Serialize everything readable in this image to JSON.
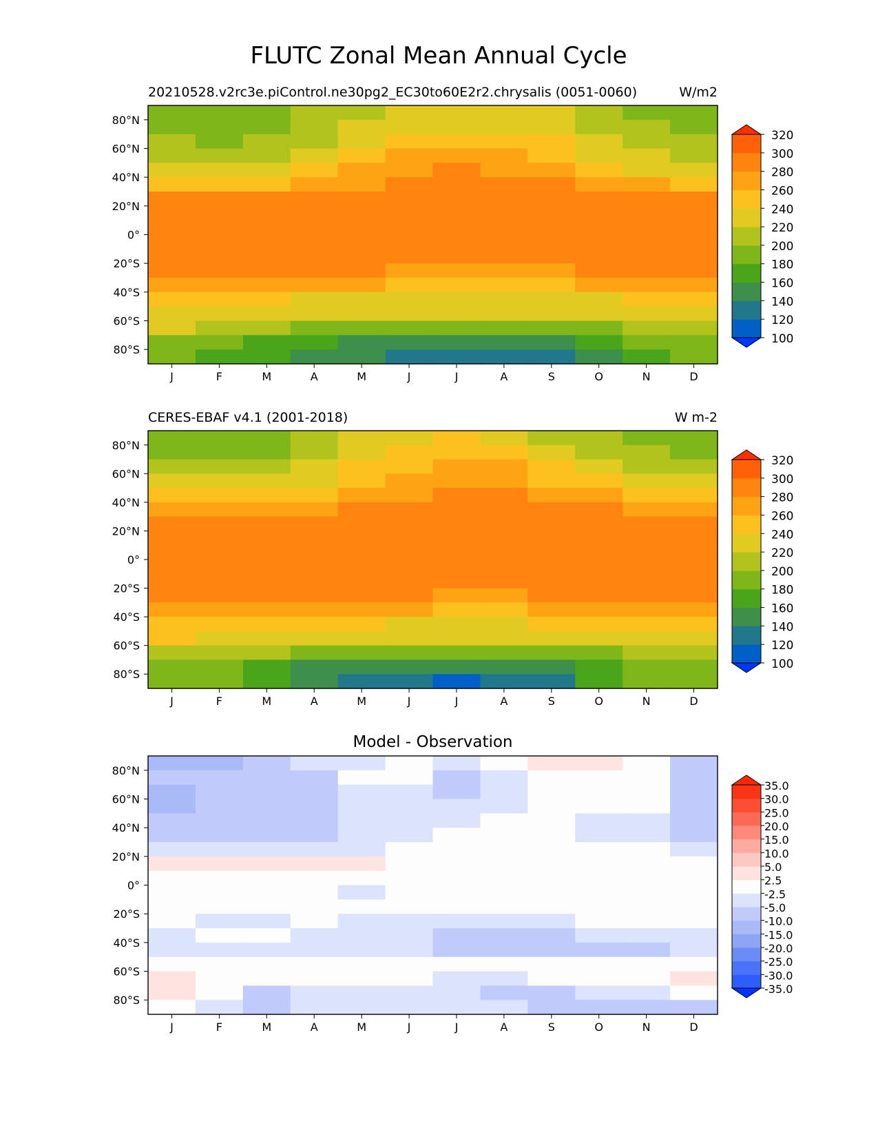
{
  "figure": {
    "title": "FLUTC Zonal Mean Annual Cycle"
  },
  "months": [
    "J",
    "F",
    "M",
    "A",
    "M",
    "J",
    "J",
    "A",
    "S",
    "O",
    "N",
    "D"
  ],
  "lat_ticks": [
    "80°N",
    "60°N",
    "40°N",
    "20°N",
    "0°",
    "20°S",
    "40°S",
    "60°S",
    "80°S"
  ],
  "colors": {
    "abs_levels": [
      100,
      120,
      140,
      160,
      180,
      200,
      220,
      240,
      260,
      280,
      300,
      320
    ],
    "abs_palette": [
      "#0036ff",
      "#0060c8",
      "#20788a",
      "#3f8f4c",
      "#4aa51a",
      "#7fb619",
      "#b2c31e",
      "#e1cb23",
      "#fdc11f",
      "#fea314",
      "#ff8410",
      "#ff6008",
      "#ff3000"
    ],
    "diff_levels": [
      -35,
      -30,
      -25,
      -20,
      -15,
      -10,
      -5,
      -2.5,
      2.5,
      5,
      10,
      15,
      20,
      25,
      30,
      35
    ],
    "diff_palette": [
      "#0033ff",
      "#2d5cff",
      "#4a73fa",
      "#6b8cf7",
      "#8ea4f5",
      "#aab9f7",
      "#c0cbfb",
      "#dce3fc",
      "#fdfdfd",
      "#fde4e1",
      "#fdc8c1",
      "#fdaba0",
      "#fc8a7c",
      "#fb6a57",
      "#fb4e35",
      "#fb3416",
      "#ff2800"
    ],
    "diff_labels": [
      "35.0",
      "30.0",
      "25.0",
      "20.0",
      "15.0",
      "10.0",
      "5.0",
      "2.5",
      "-2.5",
      "-5.0",
      "-10.0",
      "-15.0",
      "-20.0",
      "-25.0",
      "-30.0",
      "-35.0"
    ]
  },
  "chart_data": [
    {
      "type": "heatmap",
      "title": "20210528.v2rc3e.piControl.ne30pg2_EC30to60E2r2.chrysalis (0051-0060)",
      "units": "W/m2",
      "x": [
        "J",
        "F",
        "M",
        "A",
        "M",
        "J",
        "J",
        "A",
        "S",
        "O",
        "N",
        "D"
      ],
      "ylim": [
        -90,
        90
      ],
      "colorbar_ticks": [
        "320",
        "300",
        "280",
        "260",
        "240",
        "220",
        "200",
        "180",
        "160",
        "140",
        "120",
        "100"
      ],
      "lat": [
        85,
        75,
        65,
        55,
        45,
        35,
        25,
        15,
        5,
        -5,
        -15,
        -25,
        -35,
        -45,
        -55,
        -65,
        -75,
        -85
      ],
      "values": [
        [
          182,
          180,
          185,
          200,
          210,
          225,
          227,
          225,
          225,
          205,
          195,
          180
        ],
        [
          193,
          190,
          192,
          205,
          222,
          235,
          238,
          237,
          232,
          215,
          205,
          190
        ],
        [
          200,
          198,
          203,
          215,
          230,
          250,
          255,
          252,
          240,
          225,
          213,
          200
        ],
        [
          213,
          212,
          218,
          228,
          245,
          262,
          266,
          262,
          252,
          236,
          222,
          210
        ],
        [
          230,
          230,
          235,
          245,
          262,
          275,
          280,
          278,
          266,
          250,
          238,
          228
        ],
        [
          255,
          255,
          258,
          265,
          275,
          288,
          292,
          290,
          283,
          270,
          260,
          255
        ],
        [
          283,
          283,
          283,
          284,
          287,
          293,
          296,
          296,
          292,
          288,
          285,
          283
        ],
        [
          290,
          290,
          290,
          289,
          290,
          293,
          295,
          295,
          294,
          292,
          291,
          290
        ],
        [
          292,
          292,
          292,
          292,
          292,
          294,
          295,
          295,
          294,
          293,
          292,
          292
        ],
        [
          293,
          293,
          292,
          291,
          292,
          292,
          292,
          292,
          292,
          292,
          293,
          293
        ],
        [
          292,
          292,
          291,
          290,
          289,
          288,
          287,
          287,
          288,
          289,
          290,
          292
        ],
        [
          287,
          287,
          286,
          284,
          281,
          278,
          276,
          276,
          278,
          281,
          284,
          287
        ],
        [
          270,
          267,
          267,
          263,
          260,
          257,
          256,
          256,
          258,
          262,
          266,
          270
        ],
        [
          246,
          243,
          243,
          239,
          236,
          234,
          233,
          233,
          236,
          239,
          243,
          246
        ],
        [
          238,
          236,
          233,
          228,
          225,
          222,
          221,
          221,
          223,
          227,
          232,
          236
        ],
        [
          220,
          215,
          207,
          198,
          192,
          188,
          187,
          187,
          192,
          198,
          210,
          218
        ],
        [
          198,
          182,
          170,
          163,
          158,
          153,
          150,
          151,
          155,
          165,
          183,
          195
        ],
        [
          195,
          178,
          160,
          148,
          140,
          132,
          125,
          126,
          135,
          152,
          175,
          190
        ]
      ]
    },
    {
      "type": "heatmap",
      "title": "CERES-EBAF v4.1 (2001-2018)",
      "units": "W m-2",
      "x": [
        "J",
        "F",
        "M",
        "A",
        "M",
        "J",
        "J",
        "A",
        "S",
        "O",
        "N",
        "D"
      ],
      "ylim": [
        -90,
        90
      ],
      "colorbar_ticks": [
        "320",
        "300",
        "280",
        "260",
        "240",
        "220",
        "200",
        "180",
        "160",
        "140",
        "120",
        "100"
      ],
      "lat": [
        85,
        75,
        65,
        55,
        45,
        35,
        25,
        15,
        5,
        -5,
        -15,
        -25,
        -35,
        -45,
        -55,
        -65,
        -75,
        -85
      ],
      "values": [
        [
          195,
          195,
          190,
          205,
          222,
          230,
          240,
          232,
          215,
          205,
          195,
          195
        ],
        [
          198,
          197,
          198,
          210,
          228,
          245,
          252,
          245,
          230,
          210,
          200,
          198
        ],
        [
          208,
          210,
          215,
          225,
          240,
          255,
          265,
          262,
          245,
          228,
          215,
          208
        ],
        [
          225,
          225,
          230,
          238,
          252,
          265,
          272,
          270,
          258,
          245,
          232,
          225
        ],
        [
          248,
          248,
          250,
          255,
          265,
          275,
          282,
          280,
          272,
          262,
          252,
          248
        ],
        [
          270,
          272,
          273,
          275,
          282,
          288,
          292,
          292,
          286,
          280,
          274,
          270
        ],
        [
          288,
          288,
          288,
          288,
          290,
          293,
          295,
          294,
          292,
          290,
          289,
          288
        ],
        [
          290,
          290,
          290,
          290,
          292,
          294,
          296,
          296,
          294,
          292,
          291,
          290
        ],
        [
          292,
          292,
          292,
          292,
          293,
          295,
          296,
          296,
          294,
          293,
          292,
          292
        ],
        [
          292,
          292,
          292,
          292,
          292,
          292,
          292,
          292,
          292,
          292,
          293,
          292
        ],
        [
          293,
          293,
          292,
          291,
          290,
          289,
          288,
          288,
          289,
          290,
          291,
          293
        ],
        [
          289,
          289,
          288,
          286,
          283,
          280,
          278,
          278,
          281,
          284,
          287,
          289
        ],
        [
          272,
          270,
          270,
          266,
          263,
          260,
          258,
          258,
          261,
          265,
          269,
          272
        ],
        [
          249,
          246,
          246,
          243,
          240,
          238,
          237,
          237,
          240,
          243,
          247,
          249
        ],
        [
          240,
          238,
          236,
          231,
          228,
          225,
          224,
          224,
          226,
          230,
          235,
          238
        ],
        [
          218,
          213,
          205,
          194,
          188,
          183,
          182,
          182,
          188,
          196,
          208,
          216
        ],
        [
          197,
          182,
          168,
          158,
          152,
          146,
          144,
          145,
          150,
          160,
          180,
          194
        ],
        [
          190,
          180,
          170,
          148,
          138,
          130,
          118,
          120,
          132,
          172,
          185,
          190
        ]
      ]
    },
    {
      "type": "heatmap",
      "title": "Model - Observation",
      "x": [
        "J",
        "F",
        "M",
        "A",
        "M",
        "J",
        "J",
        "A",
        "S",
        "O",
        "N",
        "D"
      ],
      "ylim": [
        -90,
        90
      ],
      "colorbar_ticks": [
        "35.0",
        "30.0",
        "25.0",
        "20.0",
        "15.0",
        "10.0",
        "5.0",
        "2.5",
        "-2.5",
        "-5.0",
        "-10.0",
        "-15.0",
        "-20.0",
        "-25.0",
        "-30.0",
        "-35.0"
      ],
      "lat": [
        85,
        75,
        65,
        55,
        45,
        35,
        25,
        15,
        5,
        -5,
        -15,
        -25,
        -35,
        -45,
        -55,
        -65,
        -75,
        -85
      ],
      "values": [
        [
          -13,
          -12,
          -7,
          -4,
          -4,
          -1,
          -3,
          1,
          4,
          3,
          -1,
          -7
        ],
        [
          -10,
          -8,
          -7,
          -6,
          1,
          -1,
          -6,
          -3,
          1,
          1,
          1,
          -7
        ],
        [
          -12,
          -7,
          -7,
          -7,
          -4,
          -5,
          -6,
          -3,
          1,
          1,
          1,
          -7
        ],
        [
          -12,
          -7,
          -7,
          -7,
          -4,
          -3,
          -4,
          -3,
          1,
          1,
          1,
          -7
        ],
        [
          -8,
          -7,
          -7,
          -7,
          -4,
          -3,
          -3,
          -2,
          1,
          -3,
          -3,
          -7
        ],
        [
          -7,
          -7,
          -7,
          -7,
          -5,
          -4,
          -1,
          0,
          -1,
          -3,
          -3,
          -7
        ],
        [
          -3,
          -3,
          -3,
          -3,
          -3,
          1,
          1,
          1,
          1,
          1,
          1,
          -3
        ],
        [
          3,
          3,
          3,
          4,
          4,
          1,
          1,
          1,
          1,
          1,
          1,
          1
        ],
        [
          1,
          1,
          1,
          1,
          1,
          1,
          1,
          1,
          1,
          1,
          1,
          1
        ],
        [
          1,
          1,
          1,
          1,
          -3,
          1,
          1,
          1,
          1,
          1,
          1,
          1
        ],
        [
          1,
          1,
          1,
          1,
          1,
          1,
          1,
          1,
          1,
          1,
          1,
          1
        ],
        [
          1,
          -3,
          -3,
          1,
          -3,
          -3,
          -3,
          -3,
          -3,
          1,
          1,
          1
        ],
        [
          -3,
          1,
          1,
          -3,
          -3,
          -3,
          -7,
          -7,
          -7,
          -3,
          -4,
          -3
        ],
        [
          -4,
          -3,
          -3,
          -3,
          -3,
          -3,
          -6,
          -6,
          -6,
          -6,
          -6,
          -4
        ],
        [
          1,
          1,
          1,
          1,
          1,
          1,
          1,
          1,
          1,
          1,
          1,
          1
        ],
        [
          4,
          1,
          1,
          1,
          -1,
          -1,
          -3,
          -3,
          -1,
          1,
          1,
          4
        ],
        [
          4,
          1,
          -7,
          -3,
          -4,
          -3,
          -4,
          -6,
          -7,
          -3,
          -3,
          1
        ],
        [
          1,
          -4,
          -7,
          -4,
          -5,
          -3,
          -3,
          -3,
          -7,
          -9,
          -8,
          -6
        ]
      ]
    }
  ]
}
